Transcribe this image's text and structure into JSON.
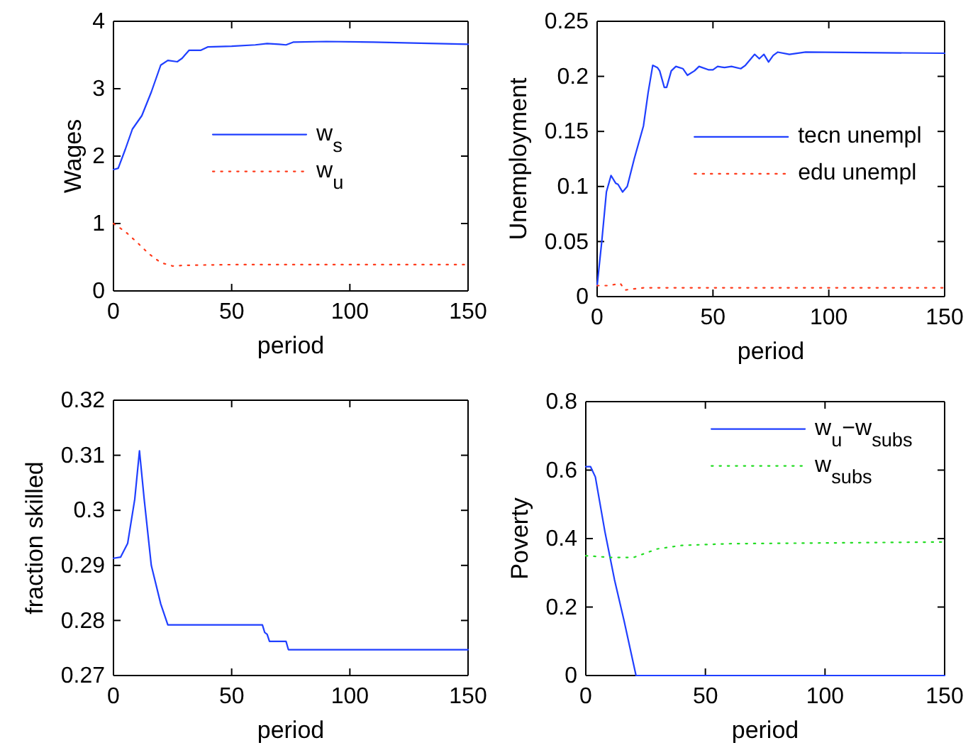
{
  "chart_data": [
    {
      "type": "line",
      "xlabel": "period",
      "ylabel": "Wages",
      "xlim": [
        0,
        150
      ],
      "xticks": [
        0,
        50,
        100,
        150
      ],
      "ylim": [
        0,
        4
      ],
      "yticks": [
        0,
        1,
        2,
        3,
        4
      ],
      "legend": "right",
      "series": [
        {
          "name": "w$_{s}$",
          "color": "#1f3fff",
          "line_style": "solid",
          "x": [
            0,
            2,
            5,
            8,
            12,
            16,
            20,
            23,
            27,
            29,
            32,
            37,
            40,
            50,
            60,
            65,
            70,
            73,
            76,
            90,
            110,
            150
          ],
          "values": [
            1.8,
            1.82,
            2.1,
            2.4,
            2.6,
            2.95,
            3.35,
            3.42,
            3.4,
            3.45,
            3.57,
            3.57,
            3.62,
            3.63,
            3.65,
            3.67,
            3.66,
            3.65,
            3.69,
            3.7,
            3.69,
            3.66
          ]
        },
        {
          "name": "w$_{u}$",
          "color": "#ff3a1a",
          "line_style": "dotted",
          "x": [
            0,
            5,
            10,
            15,
            20,
            25,
            30,
            50,
            150
          ],
          "values": [
            1.0,
            0.88,
            0.72,
            0.55,
            0.42,
            0.37,
            0.38,
            0.39,
            0.39
          ]
        }
      ]
    },
    {
      "type": "line",
      "xlabel": "period",
      "ylabel": "Unemployment",
      "xlim": [
        0,
        150
      ],
      "xticks": [
        0,
        50,
        100,
        150
      ],
      "ylim": [
        0,
        0.25
      ],
      "yticks": [
        0,
        0.05,
        0.1,
        0.15,
        0.2,
        0.25
      ],
      "legend": "right",
      "series": [
        {
          "name": "tecn unempl",
          "color": "#1f3fff",
          "line_style": "solid",
          "x": [
            0,
            2,
            4,
            6,
            8,
            9,
            11,
            13,
            16,
            20,
            22,
            24,
            26,
            27,
            29,
            30,
            32,
            34,
            37,
            39,
            42,
            44,
            48,
            50,
            52,
            55,
            58,
            62,
            64,
            68,
            70,
            72,
            74,
            76,
            78,
            83,
            90,
            150
          ],
          "values": [
            0.01,
            0.05,
            0.095,
            0.11,
            0.103,
            0.102,
            0.095,
            0.1,
            0.125,
            0.155,
            0.185,
            0.21,
            0.208,
            0.205,
            0.19,
            0.19,
            0.205,
            0.209,
            0.207,
            0.201,
            0.205,
            0.209,
            0.206,
            0.206,
            0.209,
            0.208,
            0.209,
            0.207,
            0.21,
            0.22,
            0.216,
            0.22,
            0.213,
            0.219,
            0.222,
            0.22,
            0.222,
            0.221
          ]
        },
        {
          "name": "edu unempl",
          "color": "#ff3a1a",
          "line_style": "dotted",
          "x": [
            0,
            5,
            10,
            12,
            20,
            150
          ],
          "values": [
            0.01,
            0.01,
            0.012,
            0.006,
            0.008,
            0.008
          ]
        }
      ]
    },
    {
      "type": "line",
      "xlabel": "period",
      "ylabel": "fraction skilled",
      "xlim": [
        0,
        150
      ],
      "xticks": [
        0,
        50,
        100,
        150
      ],
      "ylim": [
        0.27,
        0.32
      ],
      "yticks": [
        0.27,
        0.28,
        0.29,
        0.3,
        0.31,
        0.32
      ],
      "series": [
        {
          "color": "#1f3fff",
          "line_style": "solid",
          "x": [
            0,
            3,
            6,
            9,
            11,
            13,
            16,
            20,
            23,
            63,
            64,
            65,
            66,
            73,
            74,
            150
          ],
          "values": [
            0.2913,
            0.2915,
            0.294,
            0.302,
            0.3108,
            0.302,
            0.29,
            0.283,
            0.2792,
            0.2792,
            0.2778,
            0.2775,
            0.2762,
            0.2762,
            0.2747,
            0.2747
          ]
        }
      ]
    },
    {
      "type": "line",
      "xlabel": "period",
      "ylabel": "Poverty",
      "xlim": [
        0,
        150
      ],
      "xticks": [
        0,
        50,
        100,
        150
      ],
      "ylim": [
        0,
        0.8
      ],
      "yticks": [
        0,
        0.2,
        0.4,
        0.6,
        0.8
      ],
      "legend": "top right",
      "series": [
        {
          "name": "w$_{u}$−w$_{subs}$",
          "color": "#1f3fff",
          "line_style": "solid",
          "x": [
            0,
            2,
            4,
            8,
            12,
            16,
            21,
            150
          ],
          "values": [
            0.61,
            0.61,
            0.58,
            0.42,
            0.28,
            0.16,
            0,
            0
          ]
        },
        {
          "name": "w$_{subs}$",
          "color": "#22dd22",
          "line_style": "dotted",
          "x": [
            0,
            10,
            20,
            30,
            40,
            60,
            150
          ],
          "values": [
            0.35,
            0.345,
            0.345,
            0.37,
            0.38,
            0.385,
            0.39
          ]
        }
      ]
    }
  ]
}
